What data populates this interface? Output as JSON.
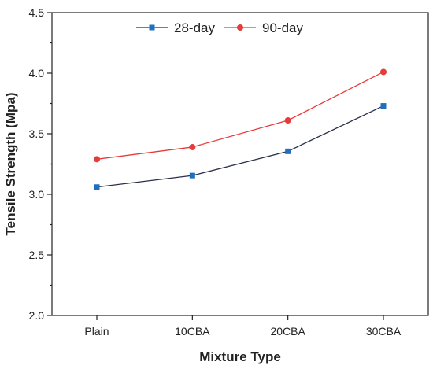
{
  "chart_data": {
    "type": "line",
    "title": "",
    "xlabel": "Mixture Type",
    "ylabel": "Tensile Strength (Mpa)",
    "categories": [
      "Plain",
      "10CBA",
      "20CBA",
      "30CBA"
    ],
    "ylim": [
      2.0,
      4.5
    ],
    "yticks": [
      "2.0",
      "2.5",
      "3.0",
      "3.5",
      "4.0",
      "4.5"
    ],
    "grid": false,
    "legend_position": "top-center",
    "series": [
      {
        "name": "28-day",
        "values": [
          3.06,
          3.155,
          3.355,
          3.73
        ],
        "color": "#1f6fbf",
        "line_color": "#2a2f4a",
        "marker": "square"
      },
      {
        "name": "90-day",
        "values": [
          3.29,
          3.39,
          3.61,
          4.01
        ],
        "color": "#e63b3b",
        "line_color": "#e63b3b",
        "marker": "circle"
      }
    ]
  }
}
